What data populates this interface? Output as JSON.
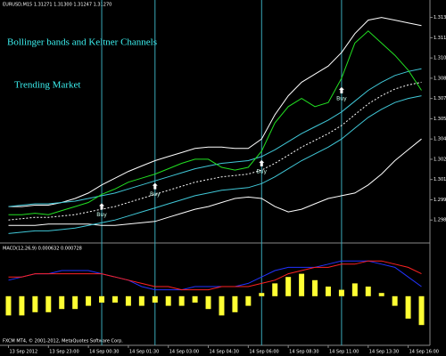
{
  "chart_data": [
    {
      "type": "line",
      "header": "EURUSD,M15 1.31271 1.31300 1.31247 1.31270",
      "title": "Bollinger bands and Keltner Channels",
      "subtitle": "Trending Market",
      "x": [
        0,
        1,
        2,
        3,
        4,
        5,
        6,
        7,
        8,
        9,
        10,
        11,
        12,
        13,
        14,
        15,
        16,
        17,
        18,
        19,
        20,
        21,
        22,
        23,
        24,
        25,
        26,
        27,
        28,
        29,
        30,
        31
      ],
      "xlim": [
        -0.5,
        31.5
      ],
      "ylim": [
        1.2965,
        1.3135
      ],
      "yticks": [
        {
          "value": 1.313,
          "label": "1.31300"
        },
        {
          "value": 1.3115,
          "label": "1.31150"
        },
        {
          "value": 1.31,
          "label": "1.31000"
        },
        {
          "value": 1.3085,
          "label": "1.30850"
        },
        {
          "value": 1.307,
          "label": "1.30700"
        },
        {
          "value": 1.3055,
          "label": "1.30550"
        },
        {
          "value": 1.304,
          "label": "1.30400"
        },
        {
          "value": 1.3025,
          "label": "1.30250"
        },
        {
          "value": 1.301,
          "label": "1.30100"
        },
        {
          "value": 1.2995,
          "label": "1.29950"
        },
        {
          "value": 1.298,
          "label": "1.29800"
        }
      ],
      "series": [
        {
          "color": "#ffffff",
          "values": [
            1.299,
            1.299,
            1.2991,
            1.2991,
            1.2993,
            1.2996,
            1.3,
            1.3006,
            1.3011,
            1.3016,
            1.302,
            1.3024,
            1.3027,
            1.303,
            1.3033,
            1.3034,
            1.3034,
            1.3033,
            1.3033,
            1.304,
            1.3058,
            1.3072,
            1.3082,
            1.3088,
            1.3094,
            1.3104,
            1.3118,
            1.3128,
            1.313,
            1.3128,
            1.3126,
            1.3124
          ]
        },
        {
          "color": "#ffffff",
          "values": [
            1.2976,
            1.2976,
            1.2976,
            1.2977,
            1.2977,
            1.2977,
            1.2977,
            1.2976,
            1.2976,
            1.2977,
            1.2978,
            1.2979,
            1.2982,
            1.2985,
            1.2988,
            1.299,
            1.2993,
            1.2996,
            1.2997,
            1.2996,
            1.299,
            1.2986,
            1.2988,
            1.2992,
            1.2996,
            1.2998,
            1.3,
            1.3006,
            1.3014,
            1.3024,
            1.3032,
            1.304
          ]
        },
        {
          "color": "#ffffff",
          "dashed": true,
          "values": [
            1.298,
            1.2981,
            1.2982,
            1.2982,
            1.2983,
            1.2984,
            1.2986,
            1.2988,
            1.299,
            1.2993,
            1.2996,
            1.2999,
            1.3002,
            1.3005,
            1.3008,
            1.301,
            1.3012,
            1.3013,
            1.3014,
            1.3017,
            1.3022,
            1.3028,
            1.3034,
            1.3039,
            1.3044,
            1.305,
            1.3058,
            1.3066,
            1.3072,
            1.3077,
            1.308,
            1.3082
          ]
        },
        {
          "color": "#40c8d8",
          "values": [
            1.299,
            1.2991,
            1.2992,
            1.2992,
            1.2993,
            1.2994,
            1.2996,
            1.2998,
            1.3,
            1.3003,
            1.3006,
            1.3009,
            1.3012,
            1.3015,
            1.3018,
            1.302,
            1.3022,
            1.3023,
            1.3024,
            1.3027,
            1.3032,
            1.3038,
            1.3044,
            1.3049,
            1.3054,
            1.306,
            1.3068,
            1.3076,
            1.3082,
            1.3087,
            1.309,
            1.3092
          ]
        },
        {
          "color": "#40c8d8",
          "values": [
            1.297,
            1.2971,
            1.2972,
            1.2972,
            1.2973,
            1.2974,
            1.2976,
            1.2978,
            1.298,
            1.2983,
            1.2986,
            1.2989,
            1.2992,
            1.2995,
            1.2998,
            1.3,
            1.3002,
            1.3003,
            1.3004,
            1.3007,
            1.3012,
            1.3018,
            1.3024,
            1.3029,
            1.3034,
            1.304,
            1.3048,
            1.3056,
            1.3062,
            1.3067,
            1.307,
            1.3072
          ]
        },
        {
          "color": "#22e022",
          "values": [
            1.2984,
            1.2984,
            1.2985,
            1.2984,
            1.2987,
            1.299,
            1.2993,
            1.2999,
            1.3003,
            1.3008,
            1.3011,
            1.3014,
            1.3018,
            1.3022,
            1.3025,
            1.3025,
            1.3019,
            1.3017,
            1.3019,
            1.3031,
            1.3052,
            1.3064,
            1.307,
            1.3064,
            1.3067,
            1.3085,
            1.3111,
            1.312,
            1.3111,
            1.3102,
            1.3091,
            1.3076
          ]
        }
      ],
      "buy": {
        "label": "Buy",
        "x": [
          7,
          11,
          19,
          25
        ]
      }
    },
    {
      "type": "bar",
      "header": "MACD(12,26,9) 0.000632 0.000728",
      "x": [
        0,
        1,
        2,
        3,
        4,
        5,
        6,
        7,
        8,
        9,
        10,
        11,
        12,
        13,
        14,
        15,
        16,
        17,
        18,
        19,
        20,
        21,
        22,
        23,
        24,
        25,
        26,
        27,
        28,
        29,
        30,
        31
      ],
      "xlim": [
        -0.5,
        31.5
      ],
      "ylim": [
        -0.0012,
        0.0013
      ],
      "color": "#ffff33",
      "values": [
        -0.0006,
        -0.0006,
        -0.0005,
        -0.0005,
        -0.0004,
        -0.0004,
        -0.0003,
        -0.0002,
        -0.0002,
        -0.0003,
        -0.0003,
        -0.0002,
        -0.0003,
        -0.0003,
        -0.0002,
        -0.0004,
        -0.0006,
        -0.0005,
        -0.0003,
        0.0001,
        0.0004,
        0.0006,
        0.0007,
        0.0005,
        0.0003,
        0.0002,
        0.0004,
        0.0003,
        0.0001,
        -0.0003,
        -0.0007,
        -0.0009
      ],
      "series": [
        {
          "color": "#2233ff",
          "values": [
            0.0005,
            0.0006,
            0.0007,
            0.0007,
            0.0008,
            0.0008,
            0.0008,
            0.0007,
            0.0006,
            0.0005,
            0.0003,
            0.0002,
            0.0002,
            0.0002,
            0.0003,
            0.0003,
            0.0003,
            0.0003,
            0.0004,
            0.0006,
            0.0008,
            0.0009,
            0.0009,
            0.0009,
            0.001,
            0.0011,
            0.0011,
            0.0011,
            0.001,
            0.0009,
            0.0006,
            0.0003
          ]
        },
        {
          "color": "#ff2222",
          "values": [
            0.0006,
            0.0006,
            0.0007,
            0.0007,
            0.0007,
            0.0007,
            0.0007,
            0.0007,
            0.0006,
            0.0005,
            0.0004,
            0.0003,
            0.0003,
            0.0002,
            0.0002,
            0.0002,
            0.0003,
            0.0003,
            0.0003,
            0.0004,
            0.0005,
            0.0007,
            0.0008,
            0.0009,
            0.0009,
            0.001,
            0.001,
            0.0011,
            0.0011,
            0.001,
            0.0009,
            0.0007
          ]
        }
      ],
      "xticks": [
        {
          "value": 0,
          "label": "13 Sep 2012"
        },
        {
          "value": 3,
          "label": "13 Sep 23:00"
        },
        {
          "value": 6,
          "label": "14 Sep 00:30"
        },
        {
          "value": 9,
          "label": "14 Sep 01:30"
        },
        {
          "value": 12,
          "label": "14 Sep 03:00"
        },
        {
          "value": 15,
          "label": "14 Sep 04:30"
        },
        {
          "value": 18,
          "label": "14 Sep 06:00"
        },
        {
          "value": 21,
          "label": "14 Sep 08:30"
        },
        {
          "value": 24,
          "label": "14 Sep 11:00"
        },
        {
          "value": 27,
          "label": "14 Sep 13:30"
        },
        {
          "value": 30,
          "label": "14 Sep 16:00"
        }
      ],
      "footer": "FXCM MT4, © 2001-2012, MetaQuotes Software Corp."
    }
  ]
}
